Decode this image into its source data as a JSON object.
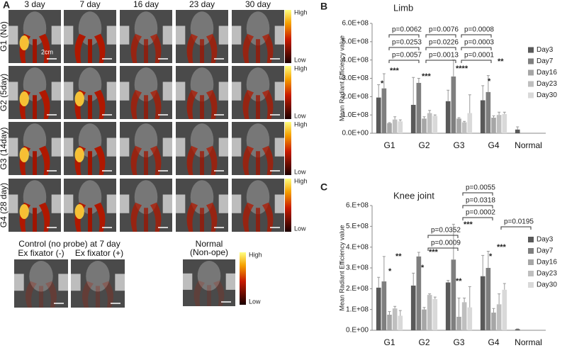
{
  "panel_a": {
    "label": "A",
    "columns": [
      "3 day",
      "7 day",
      "16 day",
      "23 day",
      "30 day"
    ],
    "rows": [
      "G1 (No)",
      "G2 (5day)",
      "G3 (14day)",
      "G4 (28 day)"
    ],
    "scale": "2cm",
    "high": "High",
    "low": "Low",
    "control_title": "Control (no probe) at 7 day",
    "controls": [
      "Ex fixator (-)",
      "Ex fixator (+)"
    ],
    "normal": [
      "Normal",
      "(Non-ope)"
    ]
  },
  "chart_data": [
    {
      "type": "bar",
      "panel_label": "B",
      "title": "Limb",
      "y_label": "Mean Radiant Efficiency value",
      "categories": [
        "G1",
        "G2",
        "G3",
        "G4",
        "Normal"
      ],
      "series": [
        {
          "name": "Day3",
          "color": "#595959",
          "values": [
            195000000,
            155000000,
            175000000,
            180000000,
            20000000
          ],
          "errors": [
            70000000,
            150000000,
            60000000,
            80000000,
            15000000
          ]
        },
        {
          "name": "Day7",
          "color": "#7f7f7f",
          "values": [
            245000000,
            275000000,
            310000000,
            225000000,
            null
          ],
          "errors": [
            80000000,
            25000000,
            90000000,
            90000000,
            null
          ]
        },
        {
          "name": "Day16",
          "color": "#a6a6a6",
          "values": [
            55000000,
            80000000,
            80000000,
            85000000,
            null
          ],
          "errors": [
            3000000,
            10000000,
            5000000,
            10000000,
            null
          ]
        },
        {
          "name": "Day23",
          "color": "#bfbfbf",
          "values": [
            75000000,
            110000000,
            60000000,
            100000000,
            null
          ],
          "errors": [
            15000000,
            15000000,
            5000000,
            15000000,
            null
          ]
        },
        {
          "name": "Day30",
          "color": "#d9d9d9",
          "values": [
            65000000,
            95000000,
            110000000,
            105000000,
            null
          ],
          "errors": [
            8000000,
            5000000,
            100000000,
            10000000,
            null
          ]
        }
      ],
      "ylim": [
        0,
        600000000
      ],
      "yticks": [
        {
          "value": 0,
          "label": "0.0E+00"
        },
        {
          "value": 100000000,
          "label": "1.0E+08"
        },
        {
          "value": 200000000,
          "label": "2.0E+08"
        },
        {
          "value": 300000000,
          "label": "3.0E+08"
        },
        {
          "value": 400000000,
          "label": "4.0E+08"
        },
        {
          "value": 500000000,
          "label": "5.0E+08"
        },
        {
          "value": 600000000,
          "label": "6.0E+08"
        }
      ],
      "legend": "right",
      "annotations": [
        "p=0.0062",
        "p=0.0253",
        "p=0.0057",
        "p=0.0076",
        "p=0.0226",
        "p=0.0013",
        "p=0.0008",
        "p=0.0003",
        "p=0.0001",
        "*",
        "***",
        "***",
        "****",
        "**",
        "*"
      ]
    },
    {
      "type": "bar",
      "panel_label": "C",
      "title": "Knee joint",
      "y_label": "Mean Radiant Efficiency value",
      "categories": [
        "G1",
        "G2",
        "G3",
        "G4",
        "Normal"
      ],
      "series": [
        {
          "name": "Day3",
          "color": "#595959",
          "values": [
            205000000,
            215000000,
            230000000,
            260000000,
            5000000
          ],
          "errors": [
            50000000,
            60000000,
            10000000,
            100000000,
            2000000
          ]
        },
        {
          "name": "Day7",
          "color": "#7f7f7f",
          "values": [
            235000000,
            355000000,
            340000000,
            300000000,
            null
          ],
          "errors": [
            120000000,
            20000000,
            170000000,
            80000000,
            null
          ]
        },
        {
          "name": "Day16",
          "color": "#a6a6a6",
          "values": [
            75000000,
            100000000,
            65000000,
            85000000,
            null
          ],
          "errors": [
            15000000,
            10000000,
            90000000,
            20000000,
            null
          ]
        },
        {
          "name": "Day23",
          "color": "#bfbfbf",
          "values": [
            105000000,
            170000000,
            135000000,
            125000000,
            null
          ],
          "errors": [
            10000000,
            5000000,
            20000000,
            50000000,
            null
          ]
        },
        {
          "name": "Day30",
          "color": "#d9d9d9",
          "values": [
            70000000,
            150000000,
            110000000,
            195000000,
            null
          ],
          "errors": [
            25000000,
            10000000,
            100000000,
            30000000,
            null
          ]
        }
      ],
      "ylim": [
        0,
        600000000
      ],
      "yticks": [
        {
          "value": 0,
          "label": "0.E+00"
        },
        {
          "value": 100000000,
          "label": "1.E+08"
        },
        {
          "value": 200000000,
          "label": "2.E+08"
        },
        {
          "value": 300000000,
          "label": "3.E+08"
        },
        {
          "value": 400000000,
          "label": "4.E+08"
        },
        {
          "value": 500000000,
          "label": "5.E+08"
        },
        {
          "value": 600000000,
          "label": "6.E+08"
        }
      ],
      "legend": "right",
      "annotations": [
        "p=0.0352",
        "p=0.0009",
        "p=0.0055",
        "p=0.0318",
        "p=0.0002",
        "p=0.0195",
        "*",
        "**",
        "*",
        "***",
        "**",
        "***",
        "*",
        "***"
      ]
    }
  ]
}
